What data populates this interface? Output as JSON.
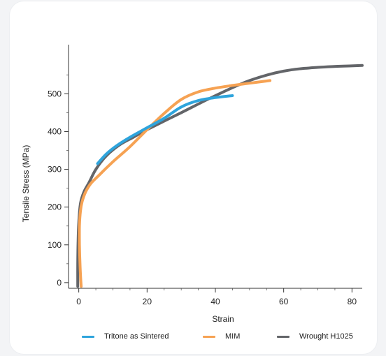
{
  "chart_data": {
    "type": "line",
    "xlabel": "Strain",
    "ylabel": "Tensile Stress (MPa)",
    "xlim": [
      -3,
      83
    ],
    "ylim": [
      -15,
      630
    ],
    "xticks": [
      0,
      20,
      40,
      60,
      80
    ],
    "yticks": [
      0,
      100,
      200,
      300,
      400,
      500
    ],
    "xtick_labels": [
      "0",
      "20",
      "40",
      "60",
      "80"
    ],
    "ytick_labels": [
      "0",
      "100",
      "200",
      "300",
      "400",
      "500"
    ],
    "grid": false,
    "legend_placement": "bottom",
    "series": [
      {
        "name": "Tritone as Sintered",
        "color": "#2ea4dc",
        "x": [
          5.5,
          8,
          11,
          15,
          20,
          25,
          30,
          35,
          40,
          45
        ],
        "y": [
          315,
          340,
          362,
          385,
          410,
          435,
          465,
          482,
          490,
          495
        ]
      },
      {
        "name": "MIM",
        "color": "#f6a253",
        "x": [
          0.7,
          0.4,
          0.2,
          0.2,
          0.5,
          1,
          2,
          3.5,
          6,
          10,
          15,
          20,
          25,
          30,
          35,
          40,
          45,
          50,
          56
        ],
        "y": [
          -10,
          40,
          100,
          150,
          190,
          215,
          240,
          262,
          285,
          320,
          360,
          405,
          448,
          485,
          505,
          515,
          522,
          528,
          535
        ]
      },
      {
        "name": "Wrought H1025",
        "color": "#636569",
        "x": [
          -0.3,
          -0.3,
          -0.2,
          0,
          0.5,
          1.5,
          3,
          5,
          8,
          12,
          16,
          20,
          30,
          40,
          50,
          60,
          70,
          83
        ],
        "y": [
          -10,
          50,
          110,
          160,
          210,
          240,
          265,
          300,
          335,
          365,
          385,
          405,
          450,
          495,
          535,
          560,
          570,
          575
        ]
      }
    ]
  }
}
